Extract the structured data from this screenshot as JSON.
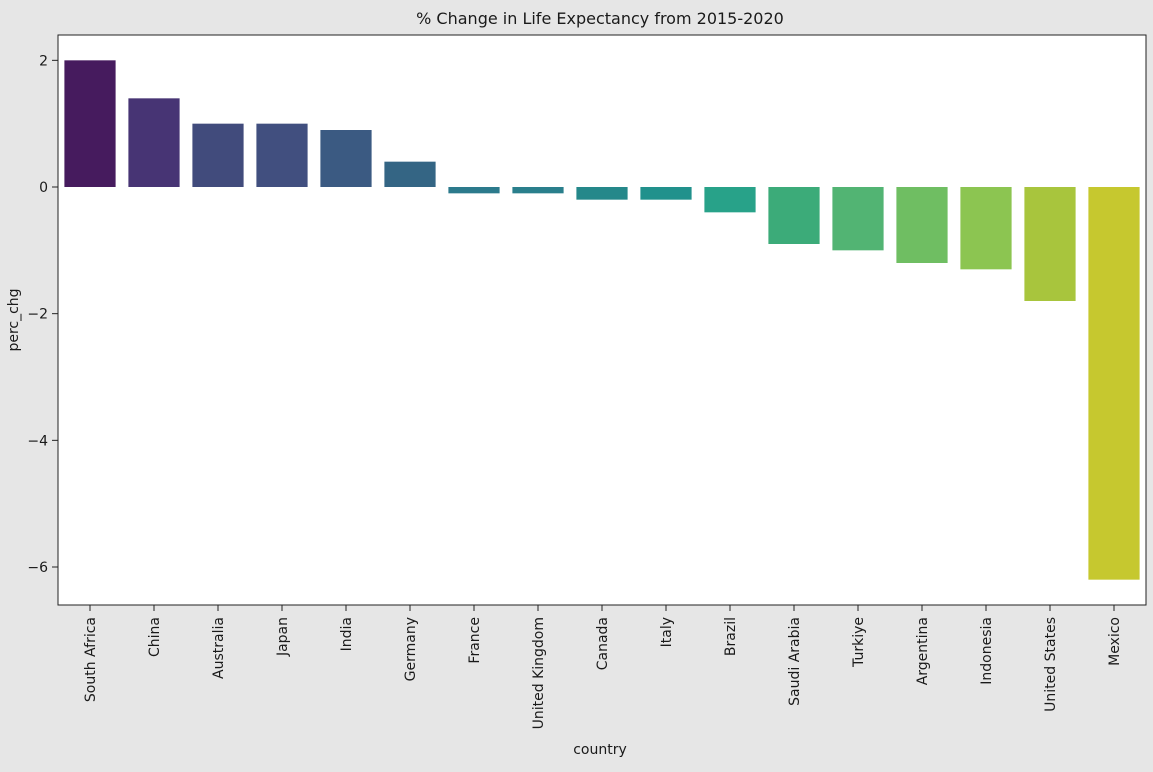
{
  "chart_data": {
    "type": "bar",
    "title": "% Change in Life Expectancy from 2015-2020",
    "xlabel": "country",
    "ylabel": "perc_chg",
    "ylim": [
      -6.6,
      2.4
    ],
    "yticks": [
      2,
      0,
      -2,
      -4,
      -6
    ],
    "ytick_labels": [
      "2",
      "0",
      "−2",
      "−4",
      "−6"
    ],
    "grid": false,
    "categories": [
      "South Africa",
      "China",
      "Australia",
      "Japan",
      "India",
      "Germany",
      "France",
      "United Kingdom",
      "Canada",
      "Italy",
      "Brazil",
      "Saudi Arabia",
      "Turkiye",
      "Argentina",
      "Indonesia",
      "United States",
      "Mexico"
    ],
    "values": [
      2.0,
      1.4,
      1.0,
      1.0,
      0.9,
      0.4,
      -0.1,
      -0.1,
      -0.2,
      -0.2,
      -0.4,
      -0.9,
      -1.0,
      -1.2,
      -1.3,
      -1.8,
      -6.2
    ],
    "colors": [
      "#461b5e",
      "#473474",
      "#414b7c",
      "#414f7f",
      "#3b5a82",
      "#346584",
      "#2c7a8c",
      "#2a7f8c",
      "#25888a",
      "#21918c",
      "#28a289",
      "#3cab79",
      "#52b473",
      "#6fbe62",
      "#8cc551",
      "#a8c53d",
      "#c6c82f"
    ]
  }
}
